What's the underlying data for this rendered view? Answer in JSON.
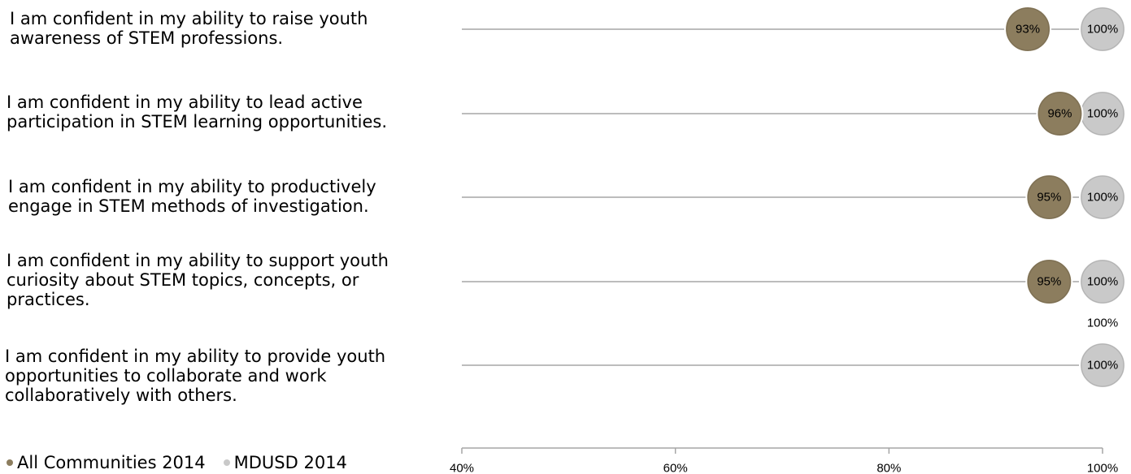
{
  "chart_data": {
    "type": "dot",
    "categories": [
      "I am confident in my ability to raise youth awareness of STEM professions.",
      "I am confident in my ability to lead active participation in STEM learning opportunities.",
      "I am confident in my ability to productively engage in STEM methods of investigation.",
      "I am confident in my ability to support youth curiosity about STEM topics, concepts, or practices.",
      "I am confident in my ability to provide youth opportunities to collaborate and work collaboratively with others."
    ],
    "category_lines": [
      [
        "I am confident in my ability to raise youth",
        "awareness of STEM professions."
      ],
      [
        "I am confident in my ability to lead active",
        "participation in STEM learning opportunities."
      ],
      [
        "I am confident in my ability to productively",
        "engage in STEM methods of investigation."
      ],
      [
        "I am confident in my ability to support youth",
        "curiosity about STEM topics, concepts, or",
        "practices."
      ],
      [
        "I am confident in my ability to provide youth",
        "opportunities to collaborate and work",
        "collaboratively with others."
      ]
    ],
    "series": [
      {
        "name": "All Communities 2014",
        "color": "#8c7d5e",
        "values": [
          93,
          96,
          95,
          95,
          100
        ],
        "labels": [
          "93%",
          "96%",
          "95%",
          "95%",
          "100%"
        ]
      },
      {
        "name": "MDUSD 2014",
        "color": "#c9c9c9",
        "values": [
          100,
          100,
          100,
          100,
          100
        ],
        "labels": [
          "100%",
          "100%",
          "100%",
          "100%",
          "100%"
        ]
      }
    ],
    "xlim": [
      40,
      100
    ],
    "xticks": [
      40,
      60,
      80,
      100
    ],
    "xtick_labels": [
      "40%",
      "60%",
      "80%",
      "100%"
    ],
    "xlabel": "",
    "ylabel": "",
    "title": "",
    "legend_position": "bottom-left",
    "line_color": "#a6a6a6"
  }
}
